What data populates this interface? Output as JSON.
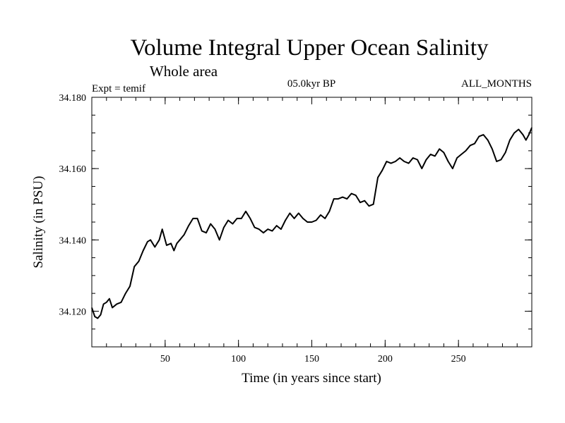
{
  "chart_data": {
    "type": "line",
    "title": "Volume Integral Upper Ocean Salinity",
    "subtitle": "Whole area",
    "expt_label": "Expt = temif",
    "period_label": "05.0kyr BP",
    "months_label": "ALL_MONTHS",
    "xlabel": "Time (in years since start)",
    "ylabel": "Salinity (in PSU)",
    "xlim": [
      0,
      300
    ],
    "ylim": [
      34.11,
      34.18
    ],
    "x_major_ticks": [
      50,
      100,
      150,
      200,
      250
    ],
    "x_minor_step": 10,
    "y_major_ticks": [
      34.12,
      34.14,
      34.16,
      34.18
    ],
    "y_minor_step": 0.005,
    "y_tick_labels": [
      "34.120",
      "34.140",
      "34.160",
      "34.180"
    ],
    "series": [
      {
        "name": "salinity",
        "color": "#000000",
        "x": [
          0,
          2,
          4,
          6,
          8,
          10,
          12,
          14,
          17,
          20,
          23,
          26,
          29,
          32,
          35,
          38,
          40,
          43,
          46,
          48,
          51,
          54,
          56,
          58,
          60,
          63,
          66,
          69,
          72,
          75,
          78,
          81,
          84,
          87,
          90,
          93,
          96,
          99,
          102,
          105,
          108,
          111,
          114,
          117,
          120,
          123,
          126,
          129,
          132,
          135,
          138,
          141,
          144,
          147,
          150,
          153,
          156,
          159,
          162,
          165,
          168,
          171,
          174,
          177,
          180,
          183,
          186,
          189,
          192,
          195,
          198,
          201,
          204,
          207,
          210,
          213,
          216,
          219,
          222,
          225,
          228,
          231,
          234,
          237,
          240,
          243,
          246,
          249,
          252,
          255,
          258,
          261,
          264,
          267,
          270,
          273,
          276,
          279,
          282,
          285,
          288,
          291,
          294,
          296,
          298,
          300
        ],
        "y": [
          34.121,
          34.1185,
          34.118,
          34.119,
          34.122,
          34.1225,
          34.1235,
          34.121,
          34.122,
          34.1225,
          34.125,
          34.127,
          34.1325,
          34.134,
          34.137,
          34.1395,
          34.14,
          34.138,
          34.14,
          34.143,
          34.1385,
          34.139,
          34.137,
          34.139,
          34.14,
          34.1415,
          34.144,
          34.146,
          34.146,
          34.1425,
          34.142,
          34.1445,
          34.143,
          34.14,
          34.1435,
          34.1455,
          34.1445,
          34.146,
          34.146,
          34.148,
          34.146,
          34.1435,
          34.143,
          34.142,
          34.143,
          34.1425,
          34.144,
          34.143,
          34.1455,
          34.1475,
          34.146,
          34.1475,
          34.146,
          34.145,
          34.145,
          34.1455,
          34.147,
          34.146,
          34.148,
          34.1515,
          34.1515,
          34.152,
          34.1515,
          34.153,
          34.1525,
          34.1505,
          34.151,
          34.1495,
          34.15,
          34.1575,
          34.1595,
          34.162,
          34.1615,
          34.162,
          34.163,
          34.162,
          34.1615,
          34.163,
          34.1625,
          34.16,
          34.1625,
          34.164,
          34.1635,
          34.1655,
          34.1645,
          34.162,
          34.16,
          34.163,
          34.164,
          34.165,
          34.1665,
          34.167,
          34.169,
          34.1695,
          34.168,
          34.1655,
          34.162,
          34.1625,
          34.1645,
          34.168,
          34.17,
          34.171,
          34.1695,
          34.168,
          34.1695,
          34.1715
        ]
      }
    ]
  }
}
